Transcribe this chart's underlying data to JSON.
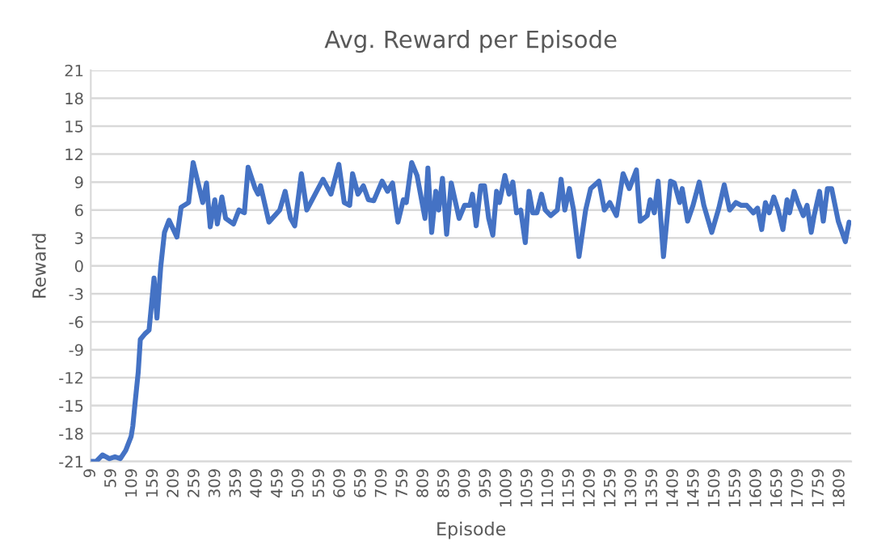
{
  "chart_data": {
    "type": "line",
    "title": "Avg. Reward per Episode",
    "xlabel": "Episode",
    "ylabel": "Reward",
    "series": [
      {
        "color": "#4472c4",
        "x": [
          9,
          22,
          37,
          54,
          67,
          80,
          93,
          106,
          110,
          115,
          123,
          128,
          139,
          149,
          161,
          168,
          177,
          186,
          197,
          216,
          226,
          244,
          255,
          270,
          278,
          287,
          296,
          307,
          313,
          324,
          333,
          352,
          365,
          378,
          387,
          404,
          411,
          417,
          437,
          463,
          476,
          489,
          499,
          515,
          528,
          567,
          586,
          605,
          618,
          631,
          638,
          651,
          664,
          676,
          689,
          709,
          722,
          734,
          747,
          760,
          767,
          780,
          793,
          812,
          819,
          828,
          838,
          845,
          854,
          864,
          875,
          894,
          907,
          920,
          926,
          935,
          946,
          955,
          965,
          975,
          984,
          991,
          1004,
          1014,
          1023,
          1032,
          1042,
          1053,
          1062,
          1071,
          1081,
          1092,
          1101,
          1114,
          1130,
          1139,
          1148,
          1159,
          1169,
          1182,
          1198,
          1210,
          1230,
          1243,
          1256,
          1272,
          1288,
          1303,
          1320,
          1329,
          1346,
          1353,
          1363,
          1372,
          1385,
          1402,
          1411,
          1424,
          1430,
          1443,
          1456,
          1471,
          1482,
          1501,
          1518,
          1531,
          1544,
          1559,
          1572,
          1585,
          1601,
          1611,
          1621,
          1630,
          1639,
          1650,
          1660,
          1672,
          1682,
          1688,
          1699,
          1708,
          1721,
          1730,
          1740,
          1747,
          1760,
          1769,
          1779,
          1789,
          1805,
          1822,
          1831
        ],
        "values": [
          -21,
          -21,
          -20.3,
          -20.7,
          -20.5,
          -20.7,
          -19.8,
          -18.3,
          -17.2,
          -14.9,
          -11.4,
          -7.9,
          -7.3,
          -6.9,
          -1.3,
          -5.6,
          -0.1,
          3.6,
          4.9,
          3.1,
          6.3,
          6.8,
          11.1,
          8.3,
          6.8,
          8.9,
          4.2,
          7.1,
          4.5,
          7.4,
          5.1,
          4.5,
          6.0,
          5.7,
          10.6,
          8.3,
          7.7,
          8.6,
          4.7,
          6.0,
          8.0,
          5.1,
          4.3,
          9.9,
          6.0,
          9.3,
          7.7,
          10.9,
          6.8,
          6.5,
          9.9,
          7.7,
          8.6,
          7.1,
          7.0,
          9.1,
          8.0,
          8.9,
          4.7,
          7.1,
          6.8,
          11.1,
          9.7,
          5.1,
          10.5,
          3.6,
          8.0,
          6.0,
          9.4,
          3.4,
          8.9,
          5.1,
          6.5,
          6.5,
          7.7,
          4.3,
          8.6,
          8.6,
          5.1,
          3.3,
          8.0,
          6.8,
          9.7,
          7.7,
          9.0,
          5.7,
          6.0,
          2.5,
          8.0,
          5.7,
          5.7,
          7.7,
          6.0,
          5.4,
          6.0,
          9.3,
          6.0,
          8.3,
          6.0,
          1.0,
          6.0,
          8.3,
          9.1,
          6.0,
          6.8,
          5.4,
          9.9,
          8.3,
          10.3,
          4.8,
          5.4,
          7.1,
          5.7,
          9.1,
          1.0,
          9.1,
          8.9,
          6.8,
          8.3,
          4.8,
          6.5,
          9.0,
          6.5,
          3.6,
          6.2,
          8.7,
          6.0,
          6.8,
          6.5,
          6.5,
          5.7,
          6.2,
          3.9,
          6.8,
          5.7,
          7.4,
          6.1,
          3.9,
          7.1,
          5.7,
          8.0,
          6.8,
          5.4,
          6.5,
          3.6,
          5.4,
          8.0,
          4.8,
          8.3,
          8.3,
          4.8,
          2.6,
          4.7
        ]
      }
    ],
    "xlim": [
      9,
      1836
    ],
    "xticks": [
      9,
      59,
      109,
      159,
      209,
      259,
      309,
      359,
      409,
      459,
      509,
      559,
      609,
      659,
      709,
      759,
      809,
      859,
      909,
      959,
      1009,
      1059,
      1109,
      1159,
      1209,
      1259,
      1309,
      1359,
      1409,
      1459,
      1509,
      1559,
      1609,
      1659,
      1709,
      1759,
      1809
    ],
    "ylim": [
      -21,
      21
    ],
    "yticks": [
      -21,
      -18,
      -15,
      -12,
      -9,
      -6,
      -3,
      0,
      3,
      6,
      9,
      12,
      15,
      18,
      21
    ],
    "grid": "y",
    "marker": "none",
    "line_style": "solid",
    "legend": false
  }
}
